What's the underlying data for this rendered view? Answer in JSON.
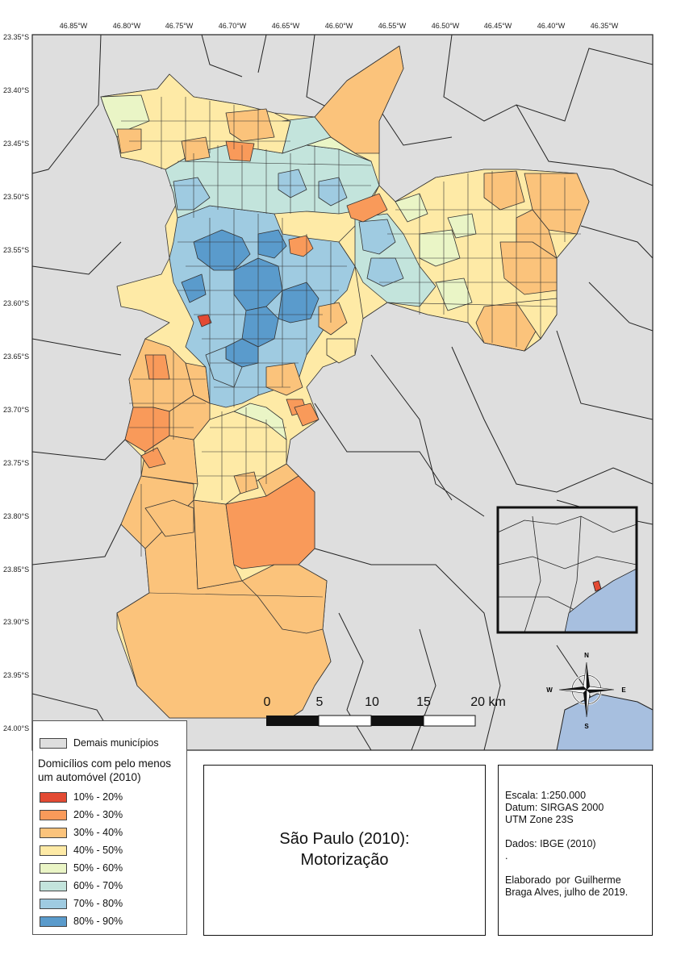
{
  "map": {
    "lon_ticks": [
      "46.85°W",
      "46.80°W",
      "46.75°W",
      "46.70°W",
      "46.65°W",
      "46.60°W",
      "46.55°W",
      "46.50°W",
      "46.45°W",
      "46.40°W",
      "46.35°W"
    ],
    "lat_ticks": [
      "23.35°S",
      "23.40°S",
      "23.45°S",
      "23.50°S",
      "23.55°S",
      "23.60°S",
      "23.65°S",
      "23.70°S",
      "23.75°S",
      "23.80°S",
      "23.85°S",
      "23.90°S",
      "23.95°S",
      "24.00°S"
    ],
    "scale_labels": [
      "0",
      "5",
      "10",
      "15",
      "20 km"
    ],
    "compass": {
      "n": "N",
      "s": "S",
      "e": "E",
      "w": "W"
    }
  },
  "legend": {
    "other_label": "Demais municípios",
    "heading_line1": "Domicílios com pelo menos",
    "heading_line2": "um automóvel (2010)",
    "classes": [
      {
        "label": "10% - 20%",
        "color": "#e34a33"
      },
      {
        "label": "20% - 30%",
        "color": "#f99a5a"
      },
      {
        "label": "30% - 40%",
        "color": "#fbc37b"
      },
      {
        "label": "40% - 50%",
        "color": "#feeaa6"
      },
      {
        "label": "50% - 60%",
        "color": "#eaf5c6"
      },
      {
        "label": "60% - 70%",
        "color": "#c3e4dc"
      },
      {
        "label": "70% - 80%",
        "color": "#9fcbe1"
      },
      {
        "label": "80% - 90%",
        "color": "#5a9bcc"
      }
    ],
    "other_color": "#dedede"
  },
  "title": {
    "line1": "São Paulo (2010):",
    "line2": "Motorização"
  },
  "info": {
    "scale": "Escala: 1:250.000",
    "datum": "Datum: SIRGAS 2000",
    "utm": "UTM Zone 23S",
    "source": "Dados: IBGE (2010)",
    "dot": ".",
    "author1": "Elaborado  por  Guilherme",
    "author2": "Braga Alves, julho de 2019."
  },
  "colors": {
    "background": "#dedede",
    "ocean": "#a7bfdf",
    "border": "#222222"
  }
}
